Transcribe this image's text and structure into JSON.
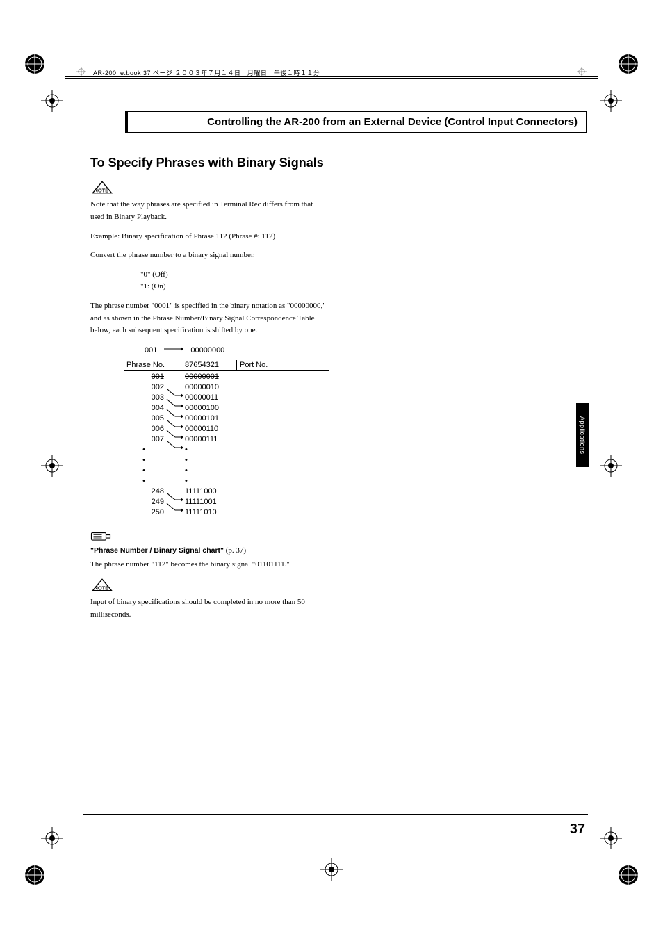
{
  "header": {
    "filename_line": "AR-200_e.book  37 ページ  ２００３年７月１４日　月曜日　午後１時１１分"
  },
  "title_box": "Controlling the AR-200 from an External Device (Control Input Connectors)",
  "section_heading": "To Specify Phrases with Binary Signals",
  "note1": "Note that the way phrases are specified in Terminal Rec differs from that used in Binary Playback.",
  "example_line": "Example: Binary specification of Phrase 112 (Phrase #: 112)",
  "convert_line": "Convert the phrase number to a binary signal number.",
  "off_line": "\"0\" (Off)",
  "on_line": "\"1: (On)",
  "paragraph2": "The phrase number \"0001\" is specified in the binary notation as \"00000000,\" and as shown in the Phrase Number/Binary Signal Correspondence Table below, each subsequent specification is shifted by one.",
  "diagram": {
    "top_left": "001",
    "top_right": "00000000",
    "header_phrase": "Phrase  No.",
    "header_bin": "87654321",
    "header_port": "Port No.",
    "rows_top": [
      {
        "ph": "001",
        "bin": "00000001",
        "strike": true
      },
      {
        "ph": "002",
        "bin": "00000010",
        "strike": false
      },
      {
        "ph": "003",
        "bin": "00000011",
        "strike": false
      },
      {
        "ph": "004",
        "bin": "00000100",
        "strike": false
      },
      {
        "ph": "005",
        "bin": "00000101",
        "strike": false
      },
      {
        "ph": "006",
        "bin": "00000110",
        "strike": false
      },
      {
        "ph": "007",
        "bin": "00000111",
        "strike": false
      }
    ],
    "rows_bottom": [
      {
        "ph": "248",
        "bin": "11111000",
        "strike": false
      },
      {
        "ph": "249",
        "bin": "11111001",
        "strike": false
      },
      {
        "ph": "250",
        "bin": "11111010",
        "strike": true
      }
    ]
  },
  "ref_text": "\"Phrase Number / Binary Signal chart\"",
  "ref_page": " (p. 37)",
  "paragraph3": "The phrase number \"112\" becomes the binary signal \"01101111.\"",
  "note2": "Input of binary specifications should be completed in no more than 50 milliseconds.",
  "side_tab": "Applications",
  "page_number": "37",
  "colors": {
    "text": "#000000",
    "background": "#ffffff",
    "tab_bg": "#000000",
    "tab_text": "#ffffff"
  }
}
